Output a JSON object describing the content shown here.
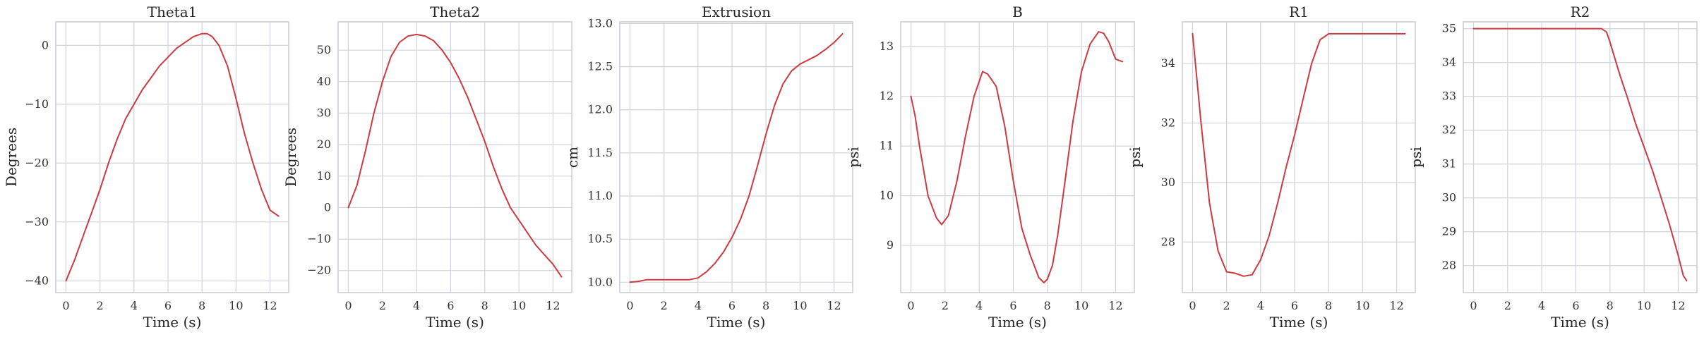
{
  "style": {
    "line_color": "#cc3b41",
    "grid_color": "#d0d4dc",
    "background": "#ffffff"
  },
  "chart_data": [
    {
      "type": "line",
      "title": "Theta1",
      "xlabel": "Time (s)",
      "ylabel": "Degrees",
      "xlim": [
        -0.6,
        13.1
      ],
      "ylim": [
        -42,
        4
      ],
      "xticks": [
        0,
        2,
        4,
        6,
        8,
        10,
        12
      ],
      "xtick_labels": [
        "0",
        "2",
        "4",
        "6",
        "8",
        "10",
        "12"
      ],
      "yticks": [
        -40,
        -30,
        -20,
        -10,
        0
      ],
      "ytick_labels": [
        "−40",
        "−30",
        "−20",
        "−10",
        "0"
      ],
      "series": [
        {
          "x": [
            0,
            0.5,
            1,
            1.5,
            2,
            2.5,
            3,
            3.5,
            4,
            4.5,
            5,
            5.5,
            6,
            6.5,
            7,
            7.5,
            8,
            8.3,
            8.6,
            9,
            9.5,
            10,
            10.5,
            11,
            11.5,
            12,
            12.5
          ],
          "values": [
            -40,
            -36.5,
            -32.5,
            -28.5,
            -24.5,
            -20,
            -16,
            -12.5,
            -10,
            -7.5,
            -5.5,
            -3.5,
            -2,
            -0.5,
            0.5,
            1.5,
            2,
            2,
            1.5,
            0,
            -3.5,
            -9,
            -15,
            -20,
            -24.5,
            -28,
            -29
          ]
        }
      ]
    },
    {
      "type": "line",
      "title": "Theta2",
      "xlabel": "Time (s)",
      "ylabel": "Degrees",
      "xlim": [
        -0.6,
        13.1
      ],
      "ylim": [
        -27,
        59
      ],
      "xticks": [
        0,
        2,
        4,
        6,
        8,
        10,
        12
      ],
      "xtick_labels": [
        "0",
        "2",
        "4",
        "6",
        "8",
        "10",
        "12"
      ],
      "yticks": [
        -20,
        -10,
        0,
        10,
        20,
        30,
        40,
        50
      ],
      "ytick_labels": [
        "−20",
        "−10",
        "0",
        "10",
        "20",
        "30",
        "40",
        "50"
      ],
      "series": [
        {
          "x": [
            0,
            0.5,
            1,
            1.5,
            2,
            2.5,
            3,
            3.5,
            4,
            4.5,
            5,
            5.5,
            6,
            6.5,
            7,
            7.5,
            8,
            8.5,
            9,
            9.5,
            10,
            10.5,
            11,
            11.5,
            12,
            12.5
          ],
          "values": [
            0,
            7,
            18,
            30,
            40,
            48,
            52.5,
            54.5,
            55,
            54.5,
            53,
            50,
            46,
            41,
            35,
            28,
            21,
            13,
            6,
            0,
            -4,
            -8,
            -12,
            -15,
            -18,
            -22
          ]
        }
      ]
    },
    {
      "type": "line",
      "title": "Extrusion",
      "xlabel": "Time (s)",
      "ylabel": "cm",
      "xlim": [
        -0.6,
        13.1
      ],
      "ylim": [
        9.88,
        13.02
      ],
      "xticks": [
        0,
        2,
        4,
        6,
        8,
        10,
        12
      ],
      "xtick_labels": [
        "0",
        "2",
        "4",
        "6",
        "8",
        "10",
        "12"
      ],
      "yticks": [
        10.0,
        10.5,
        11.0,
        11.5,
        12.0,
        12.5,
        13.0
      ],
      "ytick_labels": [
        "10.0",
        "10.5",
        "11.0",
        "11.5",
        "12.0",
        "12.5",
        "13.0"
      ],
      "series": [
        {
          "x": [
            0,
            0.5,
            1,
            1.5,
            2,
            2.5,
            3,
            3.5,
            4,
            4.5,
            5,
            5.5,
            6,
            6.5,
            7,
            7.5,
            8,
            8.5,
            9,
            9.5,
            10,
            10.5,
            11,
            11.5,
            12,
            12.5
          ],
          "values": [
            10,
            10.01,
            10.03,
            10.03,
            10.03,
            10.03,
            10.03,
            10.03,
            10.05,
            10.12,
            10.22,
            10.35,
            10.52,
            10.73,
            11.0,
            11.35,
            11.72,
            12.05,
            12.3,
            12.45,
            12.53,
            12.58,
            12.63,
            12.7,
            12.78,
            12.88
          ]
        }
      ]
    },
    {
      "type": "line",
      "title": "B",
      "xlabel": "Time (s)",
      "ylabel": "psi",
      "xlim": [
        -0.6,
        13.1
      ],
      "ylim": [
        8.05,
        13.5
      ],
      "xticks": [
        0,
        2,
        4,
        6,
        8,
        10,
        12
      ],
      "xtick_labels": [
        "0",
        "2",
        "4",
        "6",
        "8",
        "10",
        "12"
      ],
      "yticks": [
        9,
        10,
        11,
        12,
        13
      ],
      "ytick_labels": [
        "9",
        "10",
        "11",
        "12",
        "13"
      ],
      "series": [
        {
          "x": [
            0,
            0.25,
            0.5,
            1,
            1.5,
            1.8,
            2.2,
            2.7,
            3.2,
            3.7,
            4.2,
            4.5,
            5,
            5.5,
            6,
            6.5,
            7,
            7.5,
            7.8,
            8,
            8.3,
            8.6,
            9,
            9.5,
            10,
            10.5,
            11,
            11.3,
            11.6,
            12,
            12.4
          ],
          "values": [
            12,
            11.6,
            11,
            10,
            9.55,
            9.42,
            9.6,
            10.3,
            11.2,
            12.0,
            12.5,
            12.45,
            12.2,
            11.4,
            10.3,
            9.35,
            8.8,
            8.35,
            8.25,
            8.32,
            8.6,
            9.2,
            10.2,
            11.5,
            12.5,
            13.05,
            13.3,
            13.27,
            13.1,
            12.75,
            12.7
          ]
        }
      ]
    },
    {
      "type": "line",
      "title": "R1",
      "xlabel": "Time (s)",
      "ylabel": "psi",
      "xlim": [
        -0.6,
        13.1
      ],
      "ylim": [
        26.3,
        35.4
      ],
      "xticks": [
        0,
        2,
        4,
        6,
        8,
        10,
        12
      ],
      "xtick_labels": [
        "0",
        "2",
        "4",
        "6",
        "8",
        "10",
        "12"
      ],
      "yticks": [
        28,
        30,
        32,
        34
      ],
      "ytick_labels": [
        "28",
        "30",
        "32",
        "34"
      ],
      "series": [
        {
          "x": [
            0,
            0.5,
            1,
            1.5,
            2,
            2.5,
            3,
            3.5,
            4,
            4.5,
            5,
            5.5,
            6,
            6.5,
            7,
            7.5,
            8,
            8.5,
            9,
            9.5,
            10,
            10.5,
            11,
            11.5,
            12,
            12.5
          ],
          "values": [
            35,
            32,
            29.3,
            27.7,
            27.0,
            26.95,
            26.85,
            26.9,
            27.4,
            28.2,
            29.3,
            30.5,
            31.6,
            32.8,
            34.0,
            34.8,
            35,
            35,
            35,
            35,
            35,
            35,
            35,
            35,
            35,
            35
          ]
        }
      ]
    },
    {
      "type": "line",
      "title": "R2",
      "xlabel": "Time (s)",
      "ylabel": "psi",
      "xlim": [
        -0.6,
        13.1
      ],
      "ylim": [
        27.2,
        35.2
      ],
      "xticks": [
        0,
        2,
        4,
        6,
        8,
        10,
        12
      ],
      "xtick_labels": [
        "0",
        "2",
        "4",
        "6",
        "8",
        "10",
        "12"
      ],
      "yticks": [
        28,
        29,
        30,
        31,
        32,
        33,
        34,
        35
      ],
      "ytick_labels": [
        "28",
        "29",
        "30",
        "31",
        "32",
        "33",
        "34",
        "35"
      ],
      "series": [
        {
          "x": [
            0,
            1,
            2,
            3,
            4,
            5,
            6,
            7,
            7.5,
            7.8,
            8,
            8.3,
            8.6,
            9,
            9.5,
            10,
            10.5,
            11,
            11.5,
            12,
            12.3,
            12.5
          ],
          "values": [
            35,
            35,
            35,
            35,
            35,
            35,
            35,
            35,
            35,
            34.9,
            34.6,
            34.1,
            33.6,
            33.0,
            32.2,
            31.5,
            30.8,
            30.0,
            29.2,
            28.3,
            27.7,
            27.55
          ]
        }
      ]
    }
  ]
}
